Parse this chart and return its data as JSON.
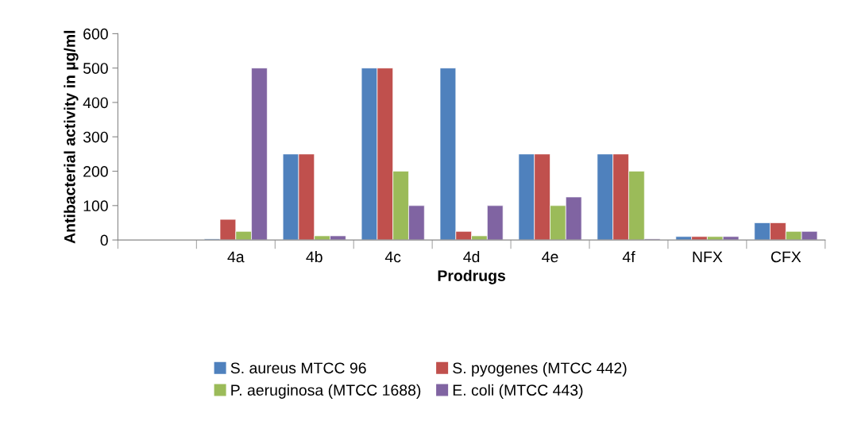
{
  "chart_data": {
    "type": "bar",
    "xlabel": "Prodrugs",
    "ylabel": "Antibacterial activity in µg/ml",
    "categories": [
      null,
      "4a",
      "4b",
      "4c",
      "4d",
      "4e",
      "4f",
      "NFX",
      "CFX"
    ],
    "series": [
      {
        "name": "S. aureus MTCC 96",
        "color": "#4f81bd",
        "values": [
          null,
          3,
          250,
          500,
          500,
          250,
          250,
          10,
          50
        ]
      },
      {
        "name": "S. pyogenes (MTCC 442)",
        "color": "#c0504d",
        "values": [
          null,
          60,
          250,
          500,
          25,
          250,
          250,
          10,
          50
        ]
      },
      {
        "name": "P. aeruginosa (MTCC 1688)",
        "color": "#9bbb59",
        "values": [
          null,
          25,
          12,
          200,
          12,
          100,
          200,
          10,
          25
        ]
      },
      {
        "name": "E. coli (MTCC 443)",
        "color": "#8064a2",
        "values": [
          null,
          500,
          12,
          100,
          100,
          125,
          3,
          10,
          25
        ]
      }
    ],
    "ylim": [
      0,
      600
    ],
    "yticks": [
      0,
      100,
      200,
      300,
      400,
      500,
      600
    ],
    "grid": false,
    "legend": "bottom"
  }
}
